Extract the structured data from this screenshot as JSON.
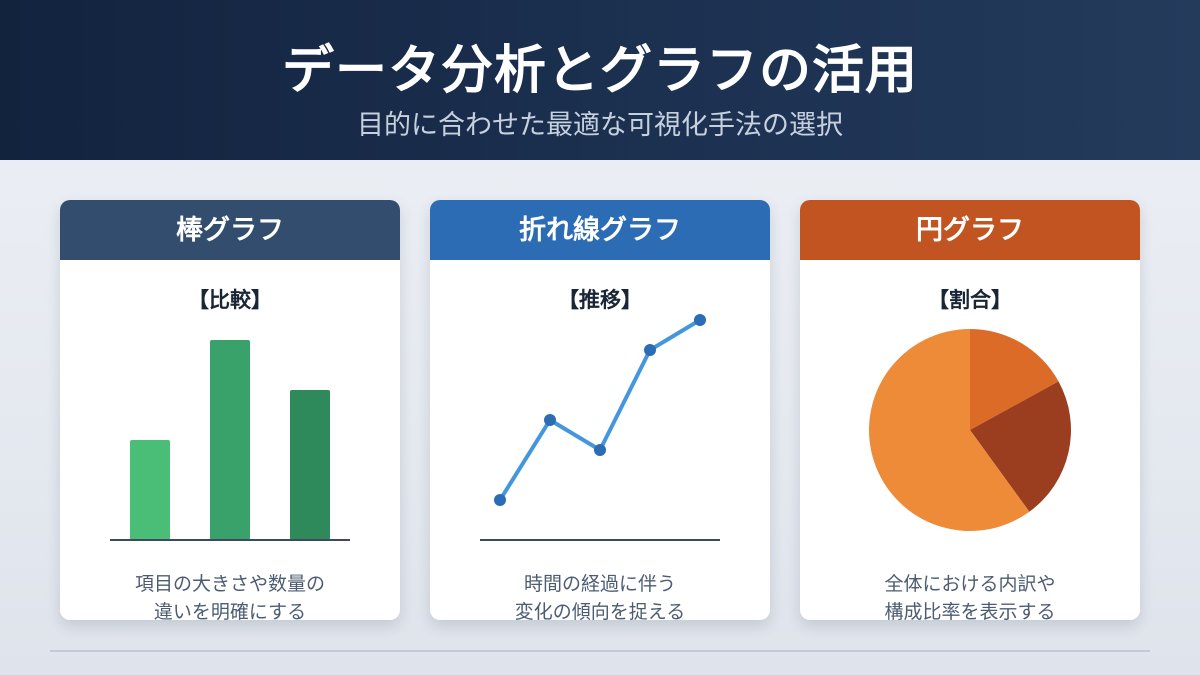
{
  "header": {
    "title": "データ分析とグラフの活用",
    "subtitle": "目的に合わせた最適な可視化手法の選択"
  },
  "cards": [
    {
      "title": "棒グラフ",
      "subtitle": "【比較】",
      "description": "項目の大きさや数量の\n違いを明確にする",
      "header_color": "#324d6e",
      "chart_data": {
        "type": "bar",
        "categories": [
          "",
          "",
          ""
        ],
        "values": [
          50,
          100,
          75
        ],
        "colors": [
          "#4abd77",
          "#38a26a",
          "#2e8a5a"
        ],
        "ylim": [
          0,
          100
        ]
      }
    },
    {
      "title": "折れ線グラフ",
      "subtitle": "【推移】",
      "description": "時間の経過に伴う\n変化の傾向を捉える",
      "header_color": "#2b6cb5",
      "chart_data": {
        "type": "line",
        "x": [
          1,
          2,
          3,
          4,
          5
        ],
        "values": [
          20,
          60,
          45,
          95,
          110
        ],
        "color": "#4497dd",
        "marker_color": "#2b6cb5",
        "ylim": [
          0,
          120
        ]
      }
    },
    {
      "title": "円グラフ",
      "subtitle": "【割合】",
      "description": "全体における内訳や\n構成比率を表示する",
      "header_color": "#c15421",
      "chart_data": {
        "type": "pie",
        "values": [
          17,
          23,
          60
        ],
        "colors": [
          "#dc6b27",
          "#9a3e1f",
          "#ed8b38"
        ]
      }
    }
  ]
}
